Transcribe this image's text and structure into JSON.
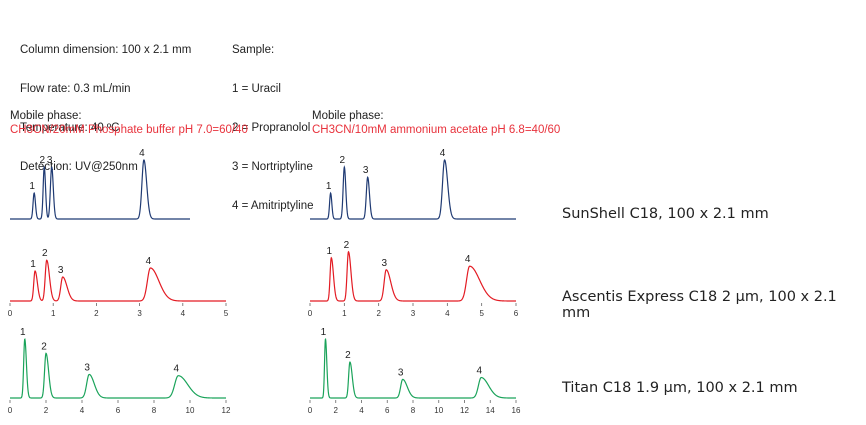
{
  "conditions": {
    "lines": [
      "Column dimension: 100 x 2.1 mm",
      "Flow rate: 0.3 mL/min",
      "Temperature: 40 ºC",
      "Detection: UV@250nm"
    ]
  },
  "sample": {
    "lines": [
      "Sample:",
      "1 = Uracil",
      "2 = Propranolol",
      "3 = Nortriptyline",
      "4 = Amitriptyline"
    ]
  },
  "mobile_phase": [
    {
      "label": "Mobile phase:",
      "condition": "CH3CN/20mM Phosphate buffer pH 7.0=60/40"
    },
    {
      "label": "Mobile phase:",
      "condition": "CH3CN/10mM ammonium acetate pH 6.8=40/60"
    }
  ],
  "columns": [
    {
      "label": "SunShell C18, 100 x 2.1 mm",
      "color": "#1f3a73"
    },
    {
      "label": "Ascentis Express C18 2 µm, 100 x 2.1 mm",
      "color": "#e31b23"
    },
    {
      "label": "Titan C18 1.9 µm, 100 x 2.1 mm",
      "color": "#1aa35a"
    }
  ],
  "chart_data": [
    {
      "type": "line",
      "panel": "left",
      "column": "SunShell C18, 100 x 2.1 mm",
      "color": "#1f3a73",
      "xlim": [
        0,
        4.1
      ],
      "show_axis": false,
      "peaks": [
        {
          "label": "1",
          "x": 0.55,
          "height": 0.36,
          "width": 0.025,
          "tail": 1.2
        },
        {
          "label": "2",
          "x": 0.78,
          "height": 0.72,
          "width": 0.025,
          "tail": 1.2
        },
        {
          "label": "3",
          "x": 0.95,
          "height": 0.72,
          "width": 0.03,
          "tail": 1.2
        },
        {
          "label": "4",
          "x": 3.05,
          "height": 0.82,
          "width": 0.045,
          "tail": 1.4
        }
      ]
    },
    {
      "type": "line",
      "panel": "left",
      "column": "Ascentis Express C18 2 µm, 100 x 2.1 mm",
      "color": "#e31b23",
      "xlim": [
        0,
        5
      ],
      "xticks": [
        0,
        1,
        2,
        3,
        4,
        5
      ],
      "peaks": [
        {
          "label": "1",
          "x": 0.58,
          "height": 0.5,
          "width": 0.03,
          "tail": 1.8
        },
        {
          "label": "2",
          "x": 0.85,
          "height": 0.68,
          "width": 0.035,
          "tail": 1.8
        },
        {
          "label": "3",
          "x": 1.22,
          "height": 0.4,
          "width": 0.045,
          "tail": 2.2
        },
        {
          "label": "4",
          "x": 3.25,
          "height": 0.55,
          "width": 0.07,
          "tail": 2.8
        }
      ]
    },
    {
      "type": "line",
      "panel": "left",
      "column": "Titan C18 1.9 µm, 100 x 2.1 mm",
      "color": "#1aa35a",
      "xlim": [
        0,
        12
      ],
      "xticks": [
        0,
        2,
        4,
        6,
        8,
        10,
        12
      ],
      "peaks": [
        {
          "label": "1",
          "x": 0.82,
          "height": 0.95,
          "width": 0.06,
          "tail": 1.5
        },
        {
          "label": "2",
          "x": 2.0,
          "height": 0.72,
          "width": 0.08,
          "tail": 1.8
        },
        {
          "label": "3",
          "x": 4.4,
          "height": 0.38,
          "width": 0.14,
          "tail": 2.0
        },
        {
          "label": "4",
          "x": 9.35,
          "height": 0.36,
          "width": 0.2,
          "tail": 2.6
        }
      ]
    },
    {
      "type": "line",
      "panel": "right",
      "column": "SunShell C18, 100 x 2.1 mm",
      "color": "#1f3a73",
      "xlim": [
        0,
        6
      ],
      "show_axis": false,
      "peaks": [
        {
          "label": "1",
          "x": 0.6,
          "height": 0.36,
          "width": 0.03,
          "tail": 1.2
        },
        {
          "label": "2",
          "x": 1.0,
          "height": 0.72,
          "width": 0.035,
          "tail": 1.2
        },
        {
          "label": "3",
          "x": 1.68,
          "height": 0.58,
          "width": 0.04,
          "tail": 1.3
        },
        {
          "label": "4",
          "x": 3.92,
          "height": 0.82,
          "width": 0.06,
          "tail": 1.5
        }
      ]
    },
    {
      "type": "line",
      "panel": "right",
      "column": "Ascentis Express C18 2 µm, 100 x 2.1 mm",
      "color": "#e31b23",
      "xlim": [
        0,
        6
      ],
      "xticks": [
        0,
        1,
        2,
        3,
        4,
        5,
        6
      ],
      "peaks": [
        {
          "label": "1",
          "x": 0.62,
          "height": 0.72,
          "width": 0.035,
          "tail": 1.8
        },
        {
          "label": "2",
          "x": 1.12,
          "height": 0.82,
          "width": 0.04,
          "tail": 1.8
        },
        {
          "label": "3",
          "x": 2.22,
          "height": 0.52,
          "width": 0.06,
          "tail": 2.2
        },
        {
          "label": "4",
          "x": 4.65,
          "height": 0.58,
          "width": 0.09,
          "tail": 3.2
        }
      ]
    },
    {
      "type": "line",
      "panel": "right",
      "column": "Titan C18 1.9 µm, 100 x 2.1 mm",
      "color": "#1aa35a",
      "xlim": [
        0,
        16
      ],
      "xticks": [
        0,
        2,
        4,
        6,
        8,
        10,
        12,
        14,
        16
      ],
      "peaks": [
        {
          "label": "1",
          "x": 1.2,
          "height": 0.95,
          "width": 0.07,
          "tail": 1.5
        },
        {
          "label": "2",
          "x": 3.1,
          "height": 0.58,
          "width": 0.1,
          "tail": 1.8
        },
        {
          "label": "3",
          "x": 7.2,
          "height": 0.3,
          "width": 0.16,
          "tail": 2.2
        },
        {
          "label": "4",
          "x": 13.3,
          "height": 0.33,
          "width": 0.22,
          "tail": 2.6
        }
      ]
    }
  ]
}
